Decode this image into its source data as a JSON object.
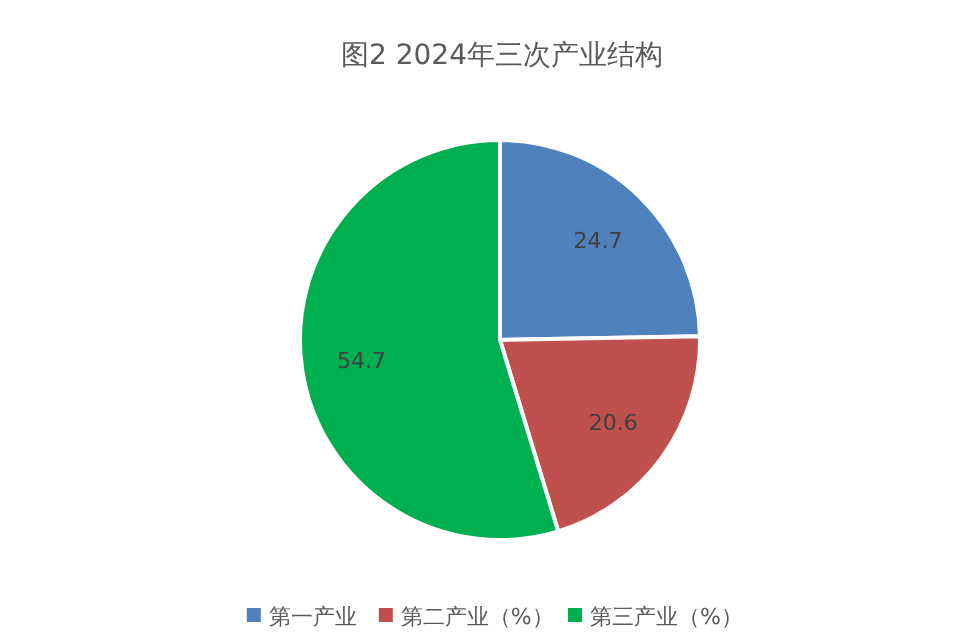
{
  "chart_data": {
    "type": "pie",
    "title": "图2  2024年三次产业结构",
    "categories": [
      "第一产业",
      "第二产业（%）",
      "第三产业（%）"
    ],
    "values": [
      24.7,
      20.6,
      54.7
    ],
    "colors": [
      "#4f81bd",
      "#c0504d",
      "#00b050"
    ],
    "data_labels": true,
    "legend": "bottom"
  }
}
